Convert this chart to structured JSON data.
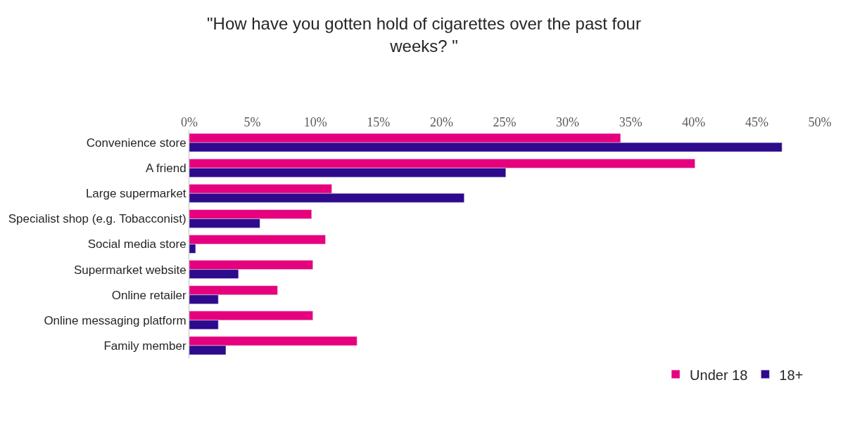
{
  "chart_data": {
    "type": "bar",
    "orientation": "horizontal",
    "title": "\"How have you gotten hold of cigarettes over the past four weeks? \"",
    "categories": [
      "Convenience store",
      "A friend",
      "Large supermarket",
      "Specialist shop (e.g. Tobacconist)",
      "Social media store",
      "Supermarket website",
      "Online retailer",
      "Online messaging platform",
      "Family member"
    ],
    "series": [
      {
        "name": "Under 18",
        "color": "#e6007e",
        "values": [
          34.2,
          40.1,
          11.3,
          9.7,
          10.8,
          9.8,
          7.0,
          9.8,
          13.3
        ]
      },
      {
        "name": "18+",
        "color": "#2e0a8c",
        "values": [
          47.0,
          25.1,
          21.8,
          5.6,
          0.5,
          3.9,
          2.3,
          2.3,
          2.9
        ]
      }
    ],
    "xlim": [
      0,
      50
    ],
    "xticks": [
      {
        "value": 0,
        "label": "0%"
      },
      {
        "value": 5,
        "label": "5%"
      },
      {
        "value": 10,
        "label": "10%"
      },
      {
        "value": 15,
        "label": "15%"
      },
      {
        "value": 20,
        "label": "20%"
      },
      {
        "value": 25,
        "label": "25%"
      },
      {
        "value": 30,
        "label": "30%"
      },
      {
        "value": 35,
        "label": "35%"
      },
      {
        "value": 40,
        "label": "40%"
      },
      {
        "value": 45,
        "label": "45%"
      },
      {
        "value": 50,
        "label": "50%"
      }
    ],
    "legend": "bottom right"
  }
}
